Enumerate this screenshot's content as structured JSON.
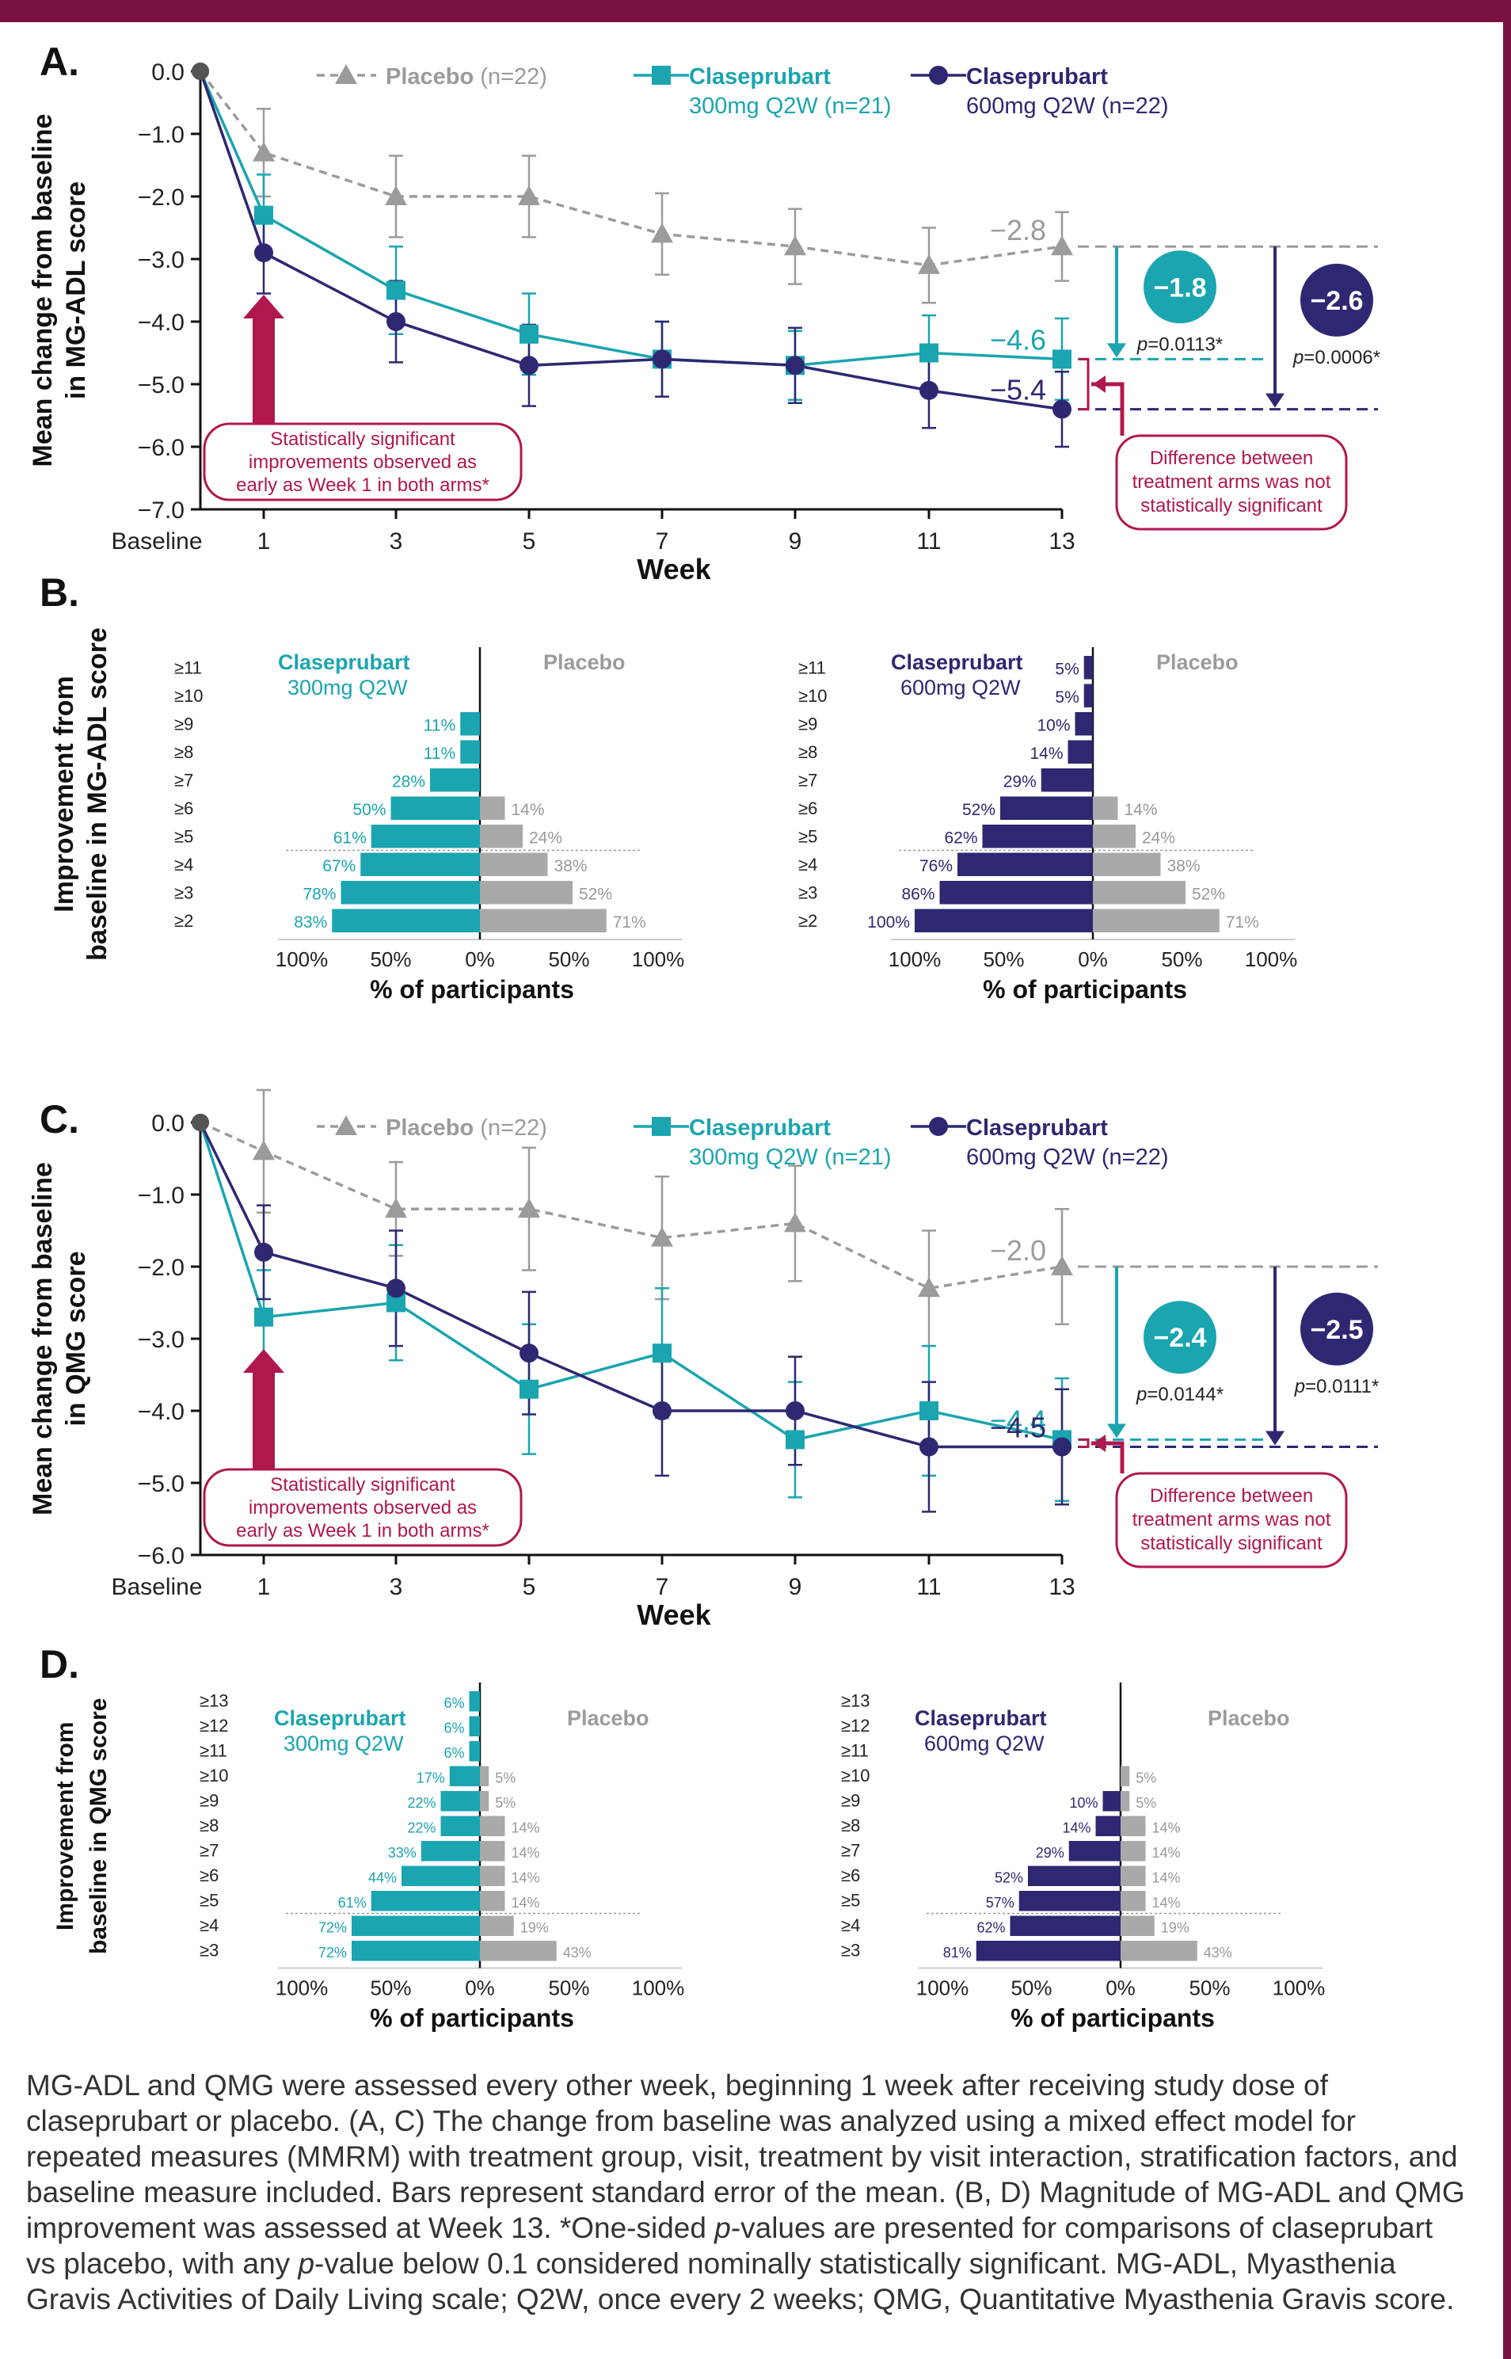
{
  "colors": {
    "frame": "#7a1240",
    "placebo": "#9b9b9b",
    "dose300": "#1aa5b0",
    "dose600": "#2e2872",
    "callout": "#b0174f",
    "caption": "#333333"
  },
  "caption": {
    "part1": "MG-ADL and QMG were assessed every other week, beginning 1 week after receiving study dose of claseprubart or placebo. (A, C) The change from baseline was analyzed using a mixed effect model for repeated measures (MMRM) with treatment group, visit, treatment by visit interaction, stratification factors, and baseline measure included. Bars represent standard error of the mean. (B, D) Magnitude of MG-ADL and QMG improvement was assessed at Week 13. *One-sided ",
    "p": "p",
    "part2": "-values are presented for comparisons of claseprubart vs placebo, with any ",
    "part3": "-value below 0.1 considered nominally statistically significant. MG-ADL, Myasthenia Gravis Activities of Daily Living scale; Q2W, once every 2 weeks; QMG, Quantitative Myasthenia Gravis score."
  },
  "chart_data": [
    {
      "panel": "A.",
      "type": "line",
      "ylabel": "Mean change from baseline in MG-ADL score",
      "xlabel": "Week",
      "ylim": [
        -7,
        0
      ],
      "yticks": [
        "0.0",
        "−1.0",
        "−2.0",
        "−3.0",
        "−4.0",
        "−5.0",
        "−6.0",
        "−7.0"
      ],
      "x": [
        "Baseline",
        "1",
        "3",
        "5",
        "7",
        "9",
        "11",
        "13"
      ],
      "legend": {
        "placebo": {
          "name": "Placebo",
          "n": "(n=22)"
        },
        "dose300": {
          "name": "Claseprubart",
          "dose": "300mg Q2W (n=21)"
        },
        "dose600": {
          "name": "Claseprubart",
          "dose": "600mg Q2W (n=22)"
        }
      },
      "series": [
        {
          "key": "placebo",
          "values": [
            0,
            -1.3,
            -2.0,
            -2.0,
            -2.6,
            -2.8,
            -3.1,
            -2.8
          ],
          "err": [
            0,
            0.7,
            0.65,
            0.65,
            0.65,
            0.6,
            0.6,
            0.55
          ]
        },
        {
          "key": "dose300",
          "values": [
            0,
            -2.3,
            -3.5,
            -4.2,
            -4.6,
            -4.7,
            -4.5,
            -4.6
          ],
          "err": [
            0,
            0.65,
            0.7,
            0.65,
            0.6,
            0.55,
            0.6,
            0.65
          ]
        },
        {
          "key": "dose600",
          "values": [
            0,
            -2.9,
            -4.0,
            -4.7,
            -4.6,
            -4.7,
            -5.1,
            -5.4
          ],
          "err": [
            0,
            0.65,
            0.65,
            0.65,
            0.6,
            0.6,
            0.6,
            0.6
          ]
        }
      ],
      "end_labels": {
        "placebo": "−2.8",
        "dose300": "−4.6",
        "dose600": "−5.4"
      },
      "diff300": {
        "value": "−1.8",
        "p": "=0.0113*"
      },
      "diff600": {
        "value": "−2.6",
        "p": "=0.0006*"
      },
      "callout_left": [
        "Statistically significant",
        "improvements observed as",
        "early as Week 1 in both arms*"
      ],
      "callout_right": [
        "Difference between",
        "treatment arms was not",
        "statistically significant"
      ]
    },
    {
      "panel": "B.",
      "type": "bar",
      "ylabel": [
        "Improvement from",
        "baseline in MG-ADL score"
      ],
      "xlabel": "% of participants",
      "xticks": [
        "100%",
        "50%",
        "0%",
        "50%",
        "100%"
      ],
      "categories": [
        "≥11",
        "≥10",
        "≥9",
        "≥8",
        "≥7",
        "≥6",
        "≥5",
        "≥4",
        "≥3",
        "≥2"
      ],
      "placebo_label": "Placebo",
      "left": {
        "title": [
          "Claseprubart",
          "300mg Q2W"
        ],
        "series": [
          {
            "name": "Claseprubart 300mg Q2W",
            "values": [
              null,
              null,
              11,
              11,
              28,
              50,
              61,
              67,
              78,
              83
            ]
          },
          {
            "name": "Placebo",
            "values": [
              null,
              null,
              null,
              null,
              null,
              14,
              24,
              38,
              52,
              71
            ]
          }
        ]
      },
      "right": {
        "title": [
          "Claseprubart",
          "600mg Q2W"
        ],
        "series": [
          {
            "name": "Claseprubart 600mg Q2W",
            "values": [
              5,
              5,
              10,
              14,
              29,
              52,
              62,
              76,
              86,
              100
            ]
          },
          {
            "name": "Placebo",
            "values": [
              null,
              null,
              null,
              null,
              null,
              14,
              24,
              38,
              52,
              71
            ]
          }
        ]
      }
    },
    {
      "panel": "C.",
      "type": "line",
      "ylabel": "Mean change from baseline in QMG score",
      "xlabel": "Week",
      "ylim": [
        -6,
        0
      ],
      "yticks": [
        "0.0",
        "−1.0",
        "−2.0",
        "−3.0",
        "−4.0",
        "−5.0",
        "−6.0"
      ],
      "x": [
        "Baseline",
        "1",
        "3",
        "5",
        "7",
        "9",
        "11",
        "13"
      ],
      "legend": {
        "placebo": {
          "name": "Placebo",
          "n": "(n=22)"
        },
        "dose300": {
          "name": "Claseprubart",
          "dose": "300mg Q2W (n=21)"
        },
        "dose600": {
          "name": "Claseprubart",
          "dose": "600mg Q2W (n=22)"
        }
      },
      "series": [
        {
          "key": "placebo",
          "values": [
            0,
            -0.4,
            -1.2,
            -1.2,
            -1.6,
            -1.4,
            -2.3,
            -2.0
          ],
          "err": [
            0,
            0.85,
            0.65,
            0.85,
            0.85,
            0.8,
            0.8,
            0.8
          ]
        },
        {
          "key": "dose300",
          "values": [
            0,
            -2.7,
            -2.5,
            -3.7,
            -3.2,
            -4.4,
            -4.0,
            -4.4
          ],
          "err": [
            0,
            0.65,
            0.8,
            0.9,
            0.9,
            0.8,
            0.9,
            0.85
          ]
        },
        {
          "key": "dose600",
          "values": [
            0,
            -1.8,
            -2.3,
            -3.2,
            -4.0,
            -4.0,
            -4.5,
            -4.5
          ],
          "err": [
            0,
            0.65,
            0.8,
            0.85,
            0.9,
            0.75,
            0.9,
            0.8
          ]
        }
      ],
      "end_labels": {
        "placebo": "−2.0",
        "dose300": "−4.4",
        "dose600": "−4.5"
      },
      "diff300": {
        "value": "−2.4",
        "p": "=0.0144*"
      },
      "diff600": {
        "value": "−2.5",
        "p": "=0.0111*"
      },
      "callout_left": [
        "Statistically significant",
        "improvements observed as",
        "early as Week 1 in both arms*"
      ],
      "callout_right": [
        "Difference between",
        "treatment arms was not",
        "statistically significant"
      ]
    },
    {
      "panel": "D.",
      "type": "bar",
      "ylabel": [
        "Improvement from",
        "baseline in QMG score"
      ],
      "xlabel": "% of participants",
      "xticks": [
        "100%",
        "50%",
        "0%",
        "50%",
        "100%"
      ],
      "categories": [
        "≥13",
        "≥12",
        "≥11",
        "≥10",
        "≥9",
        "≥8",
        "≥7",
        "≥6",
        "≥5",
        "≥4",
        "≥3"
      ],
      "placebo_label": "Placebo",
      "left": {
        "title": [
          "Claseprubart",
          "300mg Q2W"
        ],
        "series": [
          {
            "name": "Claseprubart 300mg Q2W",
            "values": [
              6,
              6,
              6,
              17,
              22,
              22,
              33,
              44,
              61,
              72,
              72
            ]
          },
          {
            "name": "Placebo",
            "values": [
              null,
              null,
              null,
              5,
              5,
              14,
              14,
              14,
              14,
              19,
              43
            ]
          }
        ]
      },
      "right": {
        "title": [
          "Claseprubart",
          "600mg Q2W"
        ],
        "series": [
          {
            "name": "Claseprubart 600mg Q2W",
            "values": [
              null,
              null,
              null,
              null,
              10,
              14,
              29,
              52,
              57,
              62,
              81
            ]
          },
          {
            "name": "Placebo",
            "values": [
              null,
              null,
              null,
              5,
              5,
              14,
              14,
              14,
              14,
              19,
              43
            ]
          }
        ]
      }
    }
  ]
}
